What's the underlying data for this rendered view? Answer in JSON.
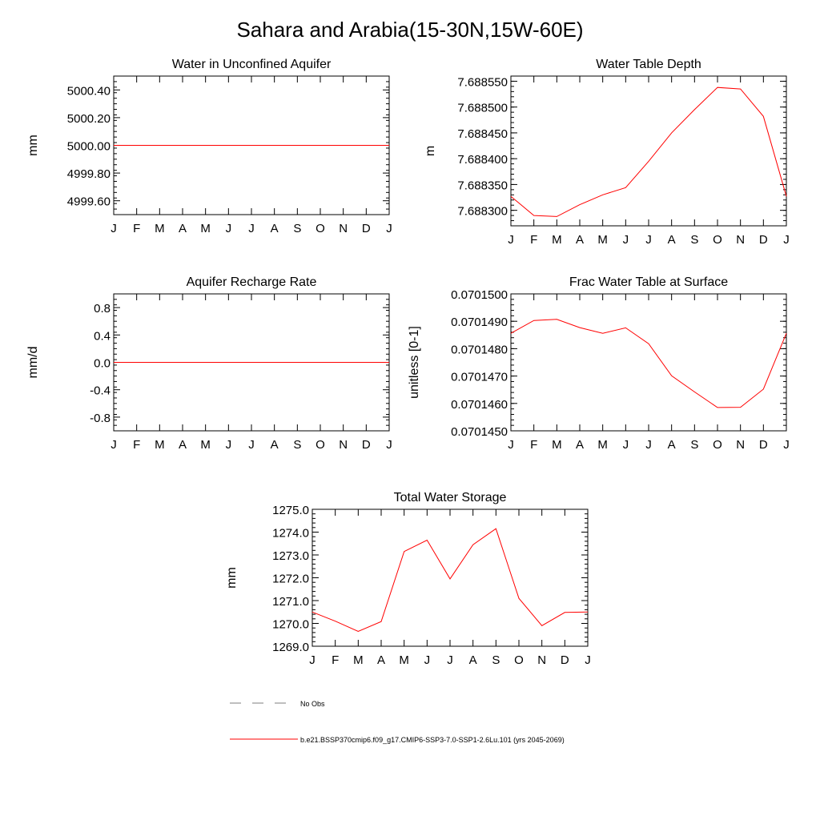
{
  "figure": {
    "title": "Sahara and Arabia(15-30N,15W-60E)"
  },
  "months": [
    "J",
    "F",
    "M",
    "A",
    "M",
    "J",
    "J",
    "A",
    "S",
    "O",
    "N",
    "D",
    "J"
  ],
  "chart_data": [
    {
      "id": "aquifer",
      "type": "line",
      "title": "Water in Unconfined Aquifer",
      "ylabel": "mm",
      "ylim": [
        4999.5,
        5000.5
      ],
      "yticks": [
        4999.6,
        4999.8,
        5000.0,
        5000.2,
        5000.4
      ],
      "ytick_labels": [
        "4999.60",
        "4999.80",
        "5000.00",
        "5000.20",
        "5000.40"
      ],
      "series": [
        {
          "values": [
            5000,
            5000,
            5000,
            5000,
            5000,
            5000,
            5000,
            5000,
            5000,
            5000,
            5000,
            5000,
            5000
          ]
        }
      ]
    },
    {
      "id": "wtd",
      "type": "line",
      "title": "Water Table Depth",
      "ylabel": "m",
      "ylim": [
        7.68827,
        7.68856
      ],
      "yticks": [
        7.6883,
        7.68835,
        7.6884,
        7.68845,
        7.6885,
        7.68855
      ],
      "ytick_labels": [
        "7.688300",
        "7.688350",
        "7.688400",
        "7.688450",
        "7.688500",
        "7.688550"
      ],
      "series": [
        {
          "values": [
            7.688327,
            7.68829,
            7.688288,
            7.688311,
            7.68833,
            7.688344,
            7.688395,
            7.68845,
            7.688495,
            7.688538,
            7.688535,
            7.688482,
            7.688327
          ]
        }
      ]
    },
    {
      "id": "recharge",
      "type": "line",
      "title": "Aquifer Recharge Rate",
      "ylabel": "mm/d",
      "ylim": [
        -1.0,
        1.0
      ],
      "yticks": [
        -0.8,
        -0.4,
        0.0,
        0.4,
        0.8
      ],
      "ytick_labels": [
        "-0.8",
        "-0.4",
        "0.0",
        "0.4",
        "0.8"
      ],
      "series": [
        {
          "values": [
            0,
            0,
            0,
            0,
            0,
            0,
            0,
            0,
            0,
            0,
            0,
            0,
            0
          ]
        }
      ]
    },
    {
      "id": "frac",
      "type": "line",
      "title": "Frac Water Table at Surface",
      "ylabel": "unitless [0-1]",
      "ylim": [
        0.070145,
        0.07015
      ],
      "yticks": [
        0.070145,
        0.070146,
        0.070147,
        0.070148,
        0.070149,
        0.07015
      ],
      "ytick_labels": [
        "0.0701450",
        "0.0701460",
        "0.0701470",
        "0.0701480",
        "0.0701490",
        "0.0701500"
      ],
      "series": [
        {
          "values": [
            0.07014856,
            0.07014903,
            0.07014907,
            0.07014877,
            0.07014856,
            0.07014876,
            0.07014818,
            0.07014701,
            0.07014642,
            0.07014585,
            0.07014586,
            0.07014652,
            0.07014856
          ]
        }
      ]
    },
    {
      "id": "tws",
      "type": "line",
      "title": "Total Water Storage",
      "ylabel": "mm",
      "ylim": [
        1269.0,
        1275.0
      ],
      "yticks": [
        1269,
        1270,
        1271,
        1272,
        1273,
        1274,
        1275
      ],
      "ytick_labels": [
        "1269.0",
        "1270.0",
        "1271.0",
        "1272.0",
        "1273.0",
        "1274.0",
        "1275.0"
      ],
      "series": [
        {
          "values": [
            1270.5,
            1270.1,
            1269.65,
            1270.08,
            1273.15,
            1273.65,
            1271.95,
            1273.45,
            1274.15,
            1271.1,
            1269.9,
            1270.48,
            1270.5
          ]
        }
      ]
    }
  ],
  "legend": {
    "items": [
      {
        "label": "No Obs",
        "color": "#7f7f7f",
        "style": "dashed"
      },
      {
        "label": "b.e21.BSSP370cmip6.f09_g17.CMIP6-SSP3-7.0-SSP1-2.6Lu.101 (yrs 2045-2069)",
        "color": "#ff0000",
        "style": "solid"
      }
    ]
  },
  "colors": {
    "series": "#ff0000",
    "axis": "#000000"
  }
}
